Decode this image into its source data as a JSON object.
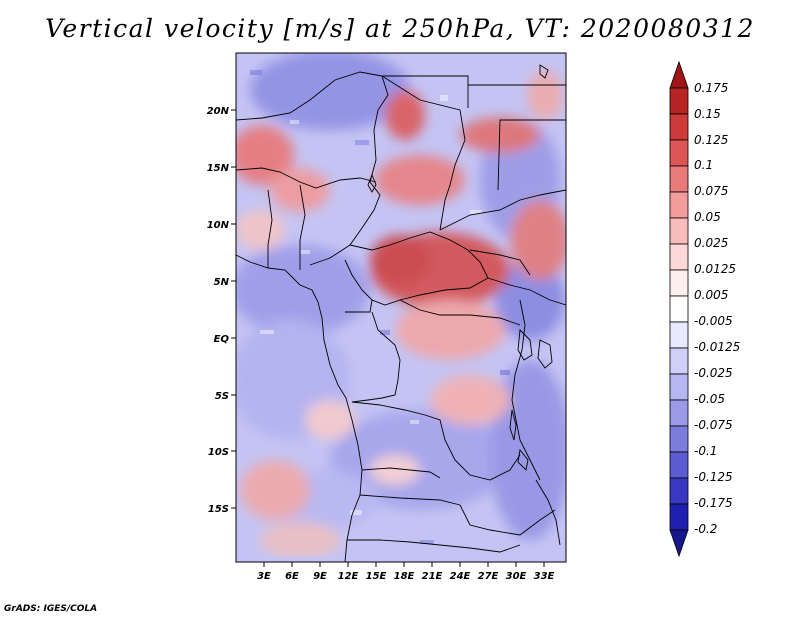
{
  "title": "Vertical velocity [m/s] at 250hPa, VT: 2020080312",
  "credit": "GrADS: IGES/COLA",
  "map": {
    "lat_labels": [
      "20N",
      "15N",
      "10N",
      "5N",
      "EQ",
      "5S",
      "10S",
      "15S"
    ],
    "lon_labels": [
      "3E",
      "6E",
      "9E",
      "12E",
      "15E",
      "18E",
      "21E",
      "24E",
      "27E",
      "30E",
      "33E"
    ]
  },
  "colorbar": {
    "levels": [
      "0.175",
      "0.15",
      "0.125",
      "0.1",
      "0.075",
      "0.05",
      "0.025",
      "0.0125",
      "0.005",
      "-0.005",
      "-0.0125",
      "-0.025",
      "-0.05",
      "-0.075",
      "-0.1",
      "-0.125",
      "-0.175",
      "-0.2"
    ],
    "colors": [
      "#a01616",
      "#b82424",
      "#cc3a3a",
      "#dc5656",
      "#e87a7a",
      "#f29c9c",
      "#f8bcbc",
      "#fcd8d8",
      "#fff0f0",
      "#ffffff",
      "#e8e8ff",
      "#cfcff8",
      "#b6b6f0",
      "#9a9ae6",
      "#7c7cdc",
      "#5c5cd0",
      "#3838c0",
      "#2020b0",
      "#16168f"
    ]
  }
}
